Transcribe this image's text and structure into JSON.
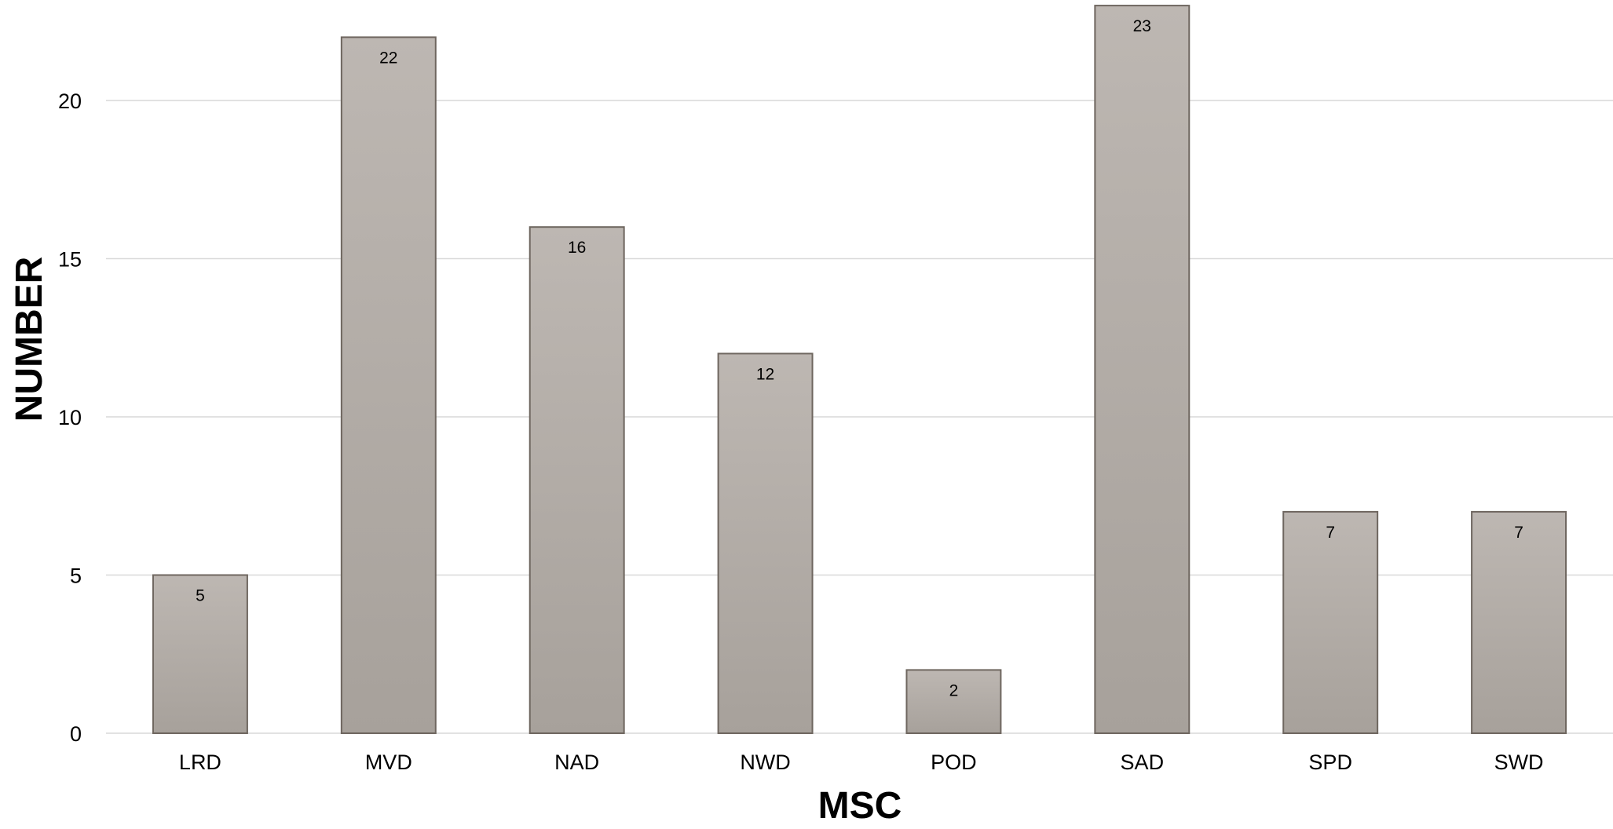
{
  "chart_data": {
    "type": "bar",
    "categories": [
      "LRD",
      "MVD",
      "NAD",
      "NWD",
      "POD",
      "SAD",
      "SPD",
      "SWD"
    ],
    "values": [
      5,
      22,
      16,
      12,
      2,
      23,
      7,
      7
    ],
    "title": "",
    "xlabel": "MSC",
    "ylabel": "NUMBER",
    "ylim": [
      0,
      23
    ],
    "yticks": [
      0,
      5,
      10,
      15,
      20
    ],
    "grid": true,
    "data_labels": true,
    "colors": {
      "bar_top": "#bdb7b2",
      "bar_bottom": "#a7a19b",
      "bar_border": "#6e665f",
      "gridline": "#d9d9d9",
      "baseline": "#d9d9d9"
    }
  }
}
